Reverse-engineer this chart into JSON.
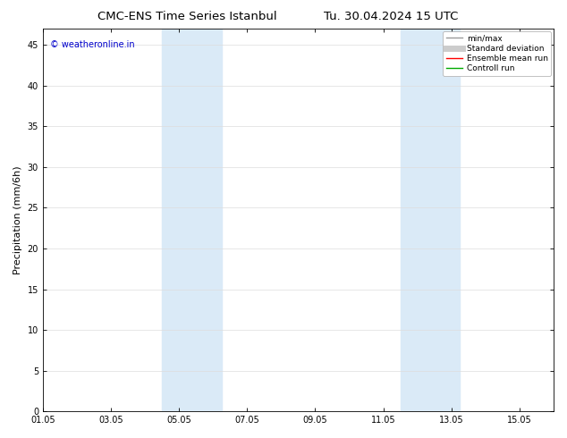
{
  "title_left": "CMC-ENS Time Series Istanbul",
  "title_right": "Tu. 30.04.2024 15 UTC",
  "ylabel": "Precipitation (mm/6h)",
  "watermark": "© weatheronline.in",
  "watermark_color": "#0000cc",
  "ylim": [
    0,
    47
  ],
  "yticks": [
    0,
    5,
    10,
    15,
    20,
    25,
    30,
    35,
    40,
    45
  ],
  "xtick_labels": [
    "01.05",
    "03.05",
    "05.05",
    "07.05",
    "09.05",
    "11.05",
    "13.05",
    "15.05"
  ],
  "xtick_positions": [
    0,
    2,
    4,
    6,
    8,
    10,
    12,
    14
  ],
  "xlim": [
    0,
    15
  ],
  "shaded_bands": [
    {
      "x_start": 3.5,
      "x_end": 5.25,
      "color": "#daeaf7"
    },
    {
      "x_start": 10.5,
      "x_end": 12.25,
      "color": "#daeaf7"
    }
  ],
  "background_color": "#ffffff",
  "plot_bg_color": "#ffffff",
  "grid_color": "#dddddd",
  "legend_items": [
    {
      "label": "min/max",
      "color": "#999999",
      "lw": 1.0,
      "style": "solid"
    },
    {
      "label": "Standard deviation",
      "color": "#cccccc",
      "lw": 5,
      "style": "solid"
    },
    {
      "label": "Ensemble mean run",
      "color": "#ff0000",
      "lw": 1.0,
      "style": "solid"
    },
    {
      "label": "Controll run",
      "color": "#00aa00",
      "lw": 1.0,
      "style": "solid"
    }
  ],
  "title_fontsize": 9.5,
  "tick_fontsize": 7,
  "ylabel_fontsize": 8,
  "watermark_fontsize": 7,
  "legend_fontsize": 6.5
}
